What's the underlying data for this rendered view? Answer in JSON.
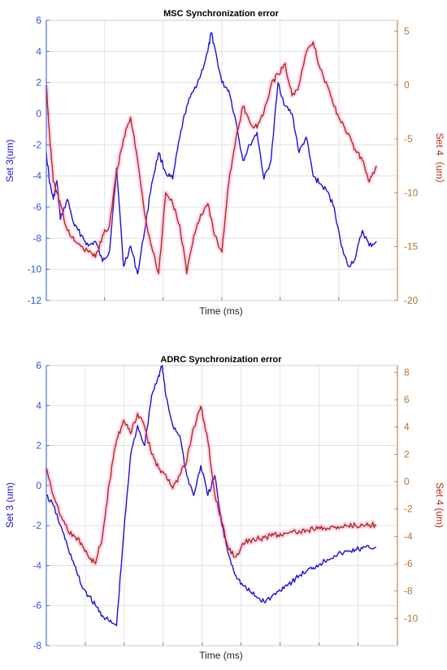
{
  "colors": {
    "left_axis": "#2b55d6",
    "right_axis": "#b8702e",
    "series3": "#1a10d8",
    "series4": "#b42a12",
    "grid": "#dcdcdc",
    "halo": "#ff66cc"
  },
  "chart_data": [
    {
      "type": "line",
      "title": "MSC Synchronization error",
      "xlabel": "Time (ms)",
      "ylabel_left": "Set 3(um)",
      "ylabel_right": "Set 4（um）",
      "ylim_left": [
        -12,
        6
      ],
      "ylim_right": [
        -20,
        6
      ],
      "yticks_left": [
        -12,
        -10,
        -8,
        -6,
        -4,
        -2,
        0,
        2,
        4,
        6
      ],
      "yticks_right": [
        -20,
        -15,
        -10,
        -5,
        0,
        5
      ],
      "yticklabels_left": [
        "-12",
        "-10",
        "-8",
        "-6",
        "-4",
        "-2",
        "0",
        "2",
        "4",
        "6"
      ],
      "yticklabels_right": [
        "-20",
        "-15",
        "-10",
        "-5",
        "0",
        "5"
      ],
      "xlim": [
        0,
        1
      ],
      "xticks": [
        0,
        0.166,
        0.333,
        0.5,
        0.666,
        0.833,
        1
      ],
      "grid": true,
      "series": [
        {
          "axis": "left",
          "x": [
            0,
            0.01,
            0.02,
            0.03,
            0.04,
            0.06,
            0.08,
            0.1,
            0.12,
            0.14,
            0.16,
            0.18,
            0.2,
            0.22,
            0.24,
            0.26,
            0.28,
            0.3,
            0.32,
            0.34,
            0.36,
            0.38,
            0.4,
            0.42,
            0.44,
            0.46,
            0.47,
            0.48,
            0.5,
            0.52,
            0.54,
            0.56,
            0.58,
            0.6,
            0.62,
            0.64,
            0.66,
            0.68,
            0.7,
            0.72,
            0.74,
            0.76,
            0.78,
            0.8,
            0.82,
            0.84,
            0.86,
            0.88,
            0.9,
            0.92,
            0.94
          ],
          "y": [
            -2.5,
            -4.5,
            -5.5,
            -4.3,
            -6.8,
            -5.5,
            -7.2,
            -7.8,
            -8.5,
            -8.2,
            -9.5,
            -8.8,
            -3.5,
            -9.8,
            -8.5,
            -10.3,
            -7.5,
            -4.5,
            -2.5,
            -3.8,
            -4.2,
            -1.5,
            0.5,
            1.5,
            2.5,
            4.0,
            5.2,
            4.2,
            2.0,
            1.5,
            -0.5,
            -3.0,
            -2.0,
            -1.2,
            -4.2,
            -3.0,
            2.0,
            0.5,
            0.0,
            -2.5,
            -1.5,
            -4.0,
            -4.5,
            -5.0,
            -6.0,
            -8.5,
            -9.8,
            -9.3,
            -7.5,
            -8.5,
            -8.2
          ]
        },
        {
          "axis": "right",
          "x": [
            0,
            0.01,
            0.02,
            0.03,
            0.04,
            0.06,
            0.08,
            0.1,
            0.12,
            0.14,
            0.16,
            0.18,
            0.2,
            0.22,
            0.24,
            0.26,
            0.28,
            0.3,
            0.32,
            0.34,
            0.36,
            0.38,
            0.4,
            0.42,
            0.44,
            0.46,
            0.48,
            0.5,
            0.52,
            0.54,
            0.56,
            0.58,
            0.6,
            0.62,
            0.64,
            0.66,
            0.68,
            0.7,
            0.72,
            0.74,
            0.76,
            0.78,
            0.8,
            0.82,
            0.84,
            0.86,
            0.88,
            0.9,
            0.92,
            0.94
          ],
          "y": [
            0.0,
            -5.0,
            -9.0,
            -10.0,
            -11.0,
            -13.5,
            -14.5,
            -15.0,
            -15.5,
            -16.0,
            -14.0,
            -13.0,
            -8.0,
            -5.0,
            -3.0,
            -7.0,
            -12.0,
            -15.0,
            -17.5,
            -10.0,
            -11.0,
            -13.0,
            -17.5,
            -14.0,
            -12.0,
            -11.0,
            -14.0,
            -15.5,
            -9.0,
            -5.0,
            -2.0,
            -3.5,
            -4.0,
            -2.5,
            0.0,
            1.0,
            2.0,
            -1.0,
            0.0,
            3.0,
            4.0,
            1.5,
            0.0,
            -2.0,
            -3.5,
            -4.5,
            -6.0,
            -7.0,
            -9.0,
            -7.5
          ]
        }
      ]
    },
    {
      "type": "line",
      "title": "ADRC Synchronization error",
      "xlabel": "Time (ms)",
      "ylabel_left": "Set 3 (um)",
      "ylabel_right": "Set 4 (um)",
      "ylim_left": [
        -8,
        6
      ],
      "ylim_right": [
        -12,
        8.5
      ],
      "yticks_left": [
        -8,
        -6,
        -4,
        -2,
        0,
        2,
        4,
        6
      ],
      "yticks_right": [
        -10,
        -8,
        -6,
        -4,
        -2,
        0,
        2,
        4,
        6,
        8
      ],
      "yticklabels_left": [
        "-8",
        "-6",
        "-4",
        "-2",
        "0",
        "2",
        "4",
        "6"
      ],
      "yticklabels_right": [
        "-10",
        "-8",
        "-6",
        "-4",
        "-2",
        "0",
        "2",
        "4",
        "6",
        "8"
      ],
      "xlim": [
        0,
        1
      ],
      "xticks": [
        0,
        0.111,
        0.222,
        0.333,
        0.444,
        0.555,
        0.666,
        0.777,
        0.888,
        1
      ],
      "grid": true,
      "series": [
        {
          "axis": "left",
          "x": [
            0,
            0.02,
            0.04,
            0.06,
            0.08,
            0.1,
            0.12,
            0.14,
            0.16,
            0.18,
            0.2,
            0.22,
            0.24,
            0.26,
            0.28,
            0.3,
            0.32,
            0.33,
            0.34,
            0.36,
            0.38,
            0.4,
            0.42,
            0.44,
            0.46,
            0.48,
            0.5,
            0.52,
            0.54,
            0.56,
            0.58,
            0.6,
            0.62,
            0.64,
            0.66,
            0.68,
            0.7,
            0.72,
            0.74,
            0.76,
            0.78,
            0.8,
            0.82,
            0.84,
            0.86,
            0.88,
            0.9,
            0.92,
            0.94
          ],
          "y": [
            -0.5,
            -1.0,
            -2.0,
            -3.0,
            -4.0,
            -5.0,
            -5.5,
            -6.0,
            -6.5,
            -6.8,
            -7.0,
            -2.5,
            1.5,
            3.0,
            2.0,
            4.5,
            5.5,
            6.0,
            4.5,
            3.0,
            2.5,
            0.5,
            -0.5,
            1.0,
            -0.5,
            0.5,
            -2.0,
            -3.5,
            -4.5,
            -5.0,
            -5.3,
            -5.6,
            -5.8,
            -5.6,
            -5.3,
            -5.0,
            -4.8,
            -4.5,
            -4.3,
            -4.1,
            -3.9,
            -3.7,
            -3.5,
            -3.4,
            -3.3,
            -3.2,
            -3.15,
            -3.1,
            -3.1
          ]
        },
        {
          "axis": "right",
          "x": [
            0,
            0.02,
            0.04,
            0.06,
            0.08,
            0.1,
            0.12,
            0.14,
            0.16,
            0.18,
            0.2,
            0.22,
            0.24,
            0.26,
            0.28,
            0.3,
            0.32,
            0.34,
            0.36,
            0.38,
            0.4,
            0.42,
            0.44,
            0.46,
            0.48,
            0.5,
            0.52,
            0.54,
            0.56,
            0.58,
            0.6,
            0.62,
            0.64,
            0.66,
            0.68,
            0.7,
            0.72,
            0.74,
            0.76,
            0.78,
            0.8,
            0.82,
            0.84,
            0.86,
            0.88,
            0.9,
            0.92,
            0.94
          ],
          "y": [
            1.0,
            -1.0,
            -2.5,
            -3.5,
            -4.0,
            -4.5,
            -5.5,
            -6.0,
            -4.0,
            0.0,
            3.0,
            4.5,
            3.5,
            5.0,
            4.0,
            2.0,
            1.0,
            0.5,
            -0.5,
            0.5,
            1.5,
            4.0,
            5.5,
            3.0,
            -1.0,
            -3.0,
            -5.0,
            -5.5,
            -4.5,
            -4.3,
            -4.2,
            -4.1,
            -4.0,
            -3.9,
            -3.8,
            -3.7,
            -3.6,
            -3.55,
            -3.5,
            -3.45,
            -3.4,
            -3.35,
            -3.3,
            -3.25,
            -3.2,
            -3.15,
            -3.15,
            -3.15
          ]
        }
      ]
    }
  ]
}
